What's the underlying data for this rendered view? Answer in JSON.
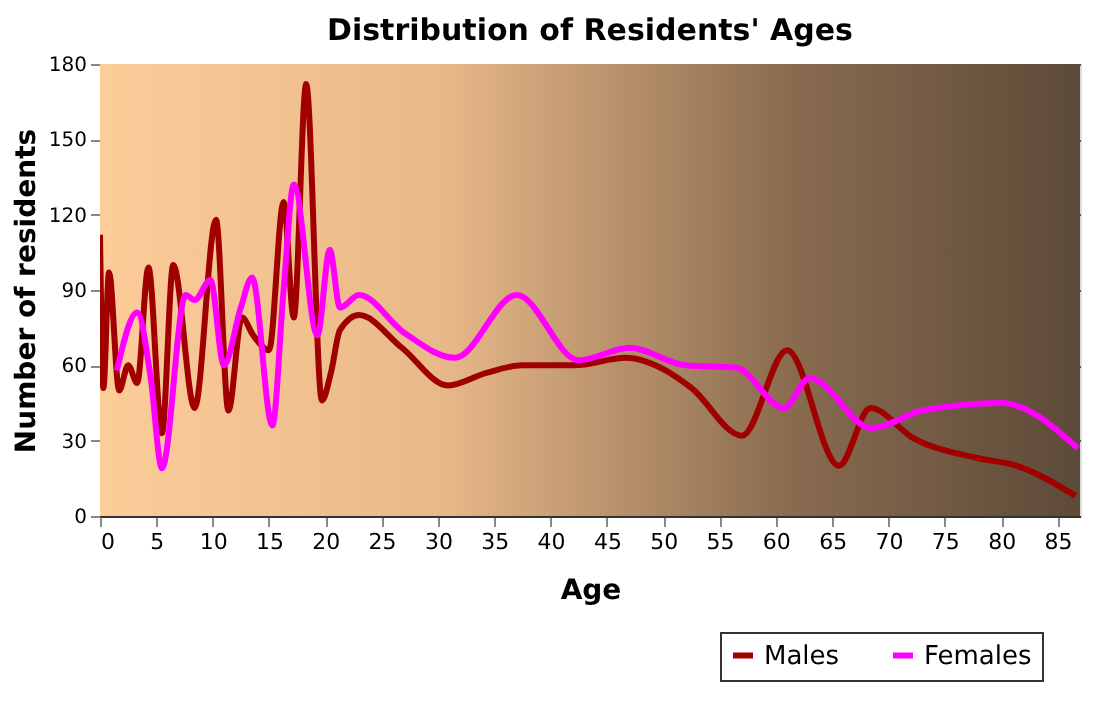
{
  "chart_data": {
    "type": "line",
    "title": "Distribution of Residents' Ages",
    "xlabel": "Age",
    "ylabel": "Number of residents",
    "xlim": [
      0,
      87
    ],
    "xticks": [
      0,
      5,
      10,
      15,
      20,
      25,
      30,
      35,
      40,
      45,
      50,
      55,
      60,
      65,
      70,
      75,
      80,
      85
    ],
    "ylim": [
      0,
      180
    ],
    "yticks": [
      0,
      30,
      60,
      90,
      120,
      150,
      180
    ],
    "grid": true,
    "legend": "bottom right",
    "series": [
      {
        "name": "Males",
        "color": "#a00000",
        "x": [
          0,
          0.3,
          0.8,
          1.7,
          2.5,
          3.3,
          4.3,
          5.5,
          6.5,
          8.4,
          10.3,
          11.4,
          12.6,
          13.6,
          15,
          16.3,
          17.2,
          18.3,
          19.7,
          20.5,
          21.3,
          23,
          26.8,
          30.9,
          34.3,
          37.5,
          42.1,
          46.7,
          50.2,
          52.5,
          57,
          61,
          65.6,
          68.4,
          72.2,
          78,
          81.4,
          86.6
        ],
        "values": [
          112,
          51,
          97,
          50,
          60,
          53,
          99,
          33,
          100,
          43,
          118,
          42,
          79,
          72,
          66,
          125,
          79,
          172,
          46,
          57,
          74,
          80,
          67,
          52,
          57,
          60,
          60,
          63,
          58,
          51,
          32,
          66,
          20,
          43,
          31,
          23,
          20,
          8
        ]
      },
      {
        "name": "Females",
        "color": "#ff00ff",
        "x": [
          1.5,
          3.3,
          4.5,
          5.5,
          7.6,
          8.4,
          9.8,
          11,
          12.5,
          13.5,
          15.3,
          16.3,
          17.2,
          19.3,
          20.4,
          21.3,
          23,
          27,
          31.5,
          37,
          42.5,
          47,
          52,
          56.5,
          60.7,
          63,
          68.5,
          73,
          80,
          86.8
        ],
        "values": [
          58,
          81,
          55,
          19,
          88,
          86,
          94,
          60,
          83,
          95,
          36,
          90,
          132,
          72,
          106,
          83,
          88,
          73,
          63,
          88,
          62,
          67,
          60,
          59,
          43,
          55,
          35,
          42,
          45,
          27
        ]
      }
    ]
  }
}
